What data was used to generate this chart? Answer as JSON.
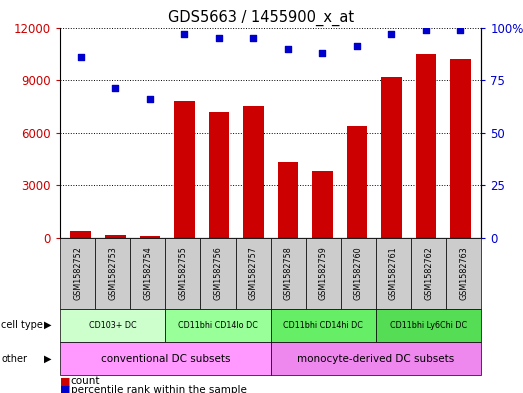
{
  "title": "GDS5663 / 1455900_x_at",
  "samples": [
    "GSM1582752",
    "GSM1582753",
    "GSM1582754",
    "GSM1582755",
    "GSM1582756",
    "GSM1582757",
    "GSM1582758",
    "GSM1582759",
    "GSM1582760",
    "GSM1582761",
    "GSM1582762",
    "GSM1582763"
  ],
  "counts": [
    400,
    150,
    120,
    7800,
    7200,
    7500,
    4300,
    3800,
    6400,
    9200,
    10500,
    10200
  ],
  "percentiles": [
    86,
    71,
    66,
    97,
    95,
    95,
    90,
    88,
    91,
    97,
    99,
    99
  ],
  "bar_color": "#cc0000",
  "dot_color": "#0000cc",
  "ylim_left": [
    0,
    12000
  ],
  "ylim_right": [
    0,
    100
  ],
  "yticks_left": [
    0,
    3000,
    6000,
    9000,
    12000
  ],
  "ytick_labels_left": [
    "0",
    "3000",
    "6000",
    "9000",
    "12000"
  ],
  "yticks_right": [
    0,
    25,
    50,
    75,
    100
  ],
  "ytick_labels_right": [
    "0",
    "25",
    "50",
    "75",
    "100%"
  ],
  "cell_type_groups": [
    {
      "label": "CD103+ DC",
      "start": 0,
      "end": 3,
      "color": "#ccffcc"
    },
    {
      "label": "CD11bhi CD14lo DC",
      "start": 3,
      "end": 6,
      "color": "#99ff99"
    },
    {
      "label": "CD11bhi CD14hi DC",
      "start": 6,
      "end": 9,
      "color": "#66ee66"
    },
    {
      "label": "CD11bhi Ly6Chi DC",
      "start": 9,
      "end": 12,
      "color": "#55dd55"
    }
  ],
  "other_groups": [
    {
      "label": "conventional DC subsets",
      "start": 0,
      "end": 6,
      "color": "#ff99ff"
    },
    {
      "label": "monocyte-derived DC subsets",
      "start": 6,
      "end": 12,
      "color": "#ee88ee"
    }
  ],
  "left_label_color": "#cc0000",
  "right_label_color": "#0000cc",
  "bg_color": "#ffffff",
  "sample_box_color": "#cccccc"
}
